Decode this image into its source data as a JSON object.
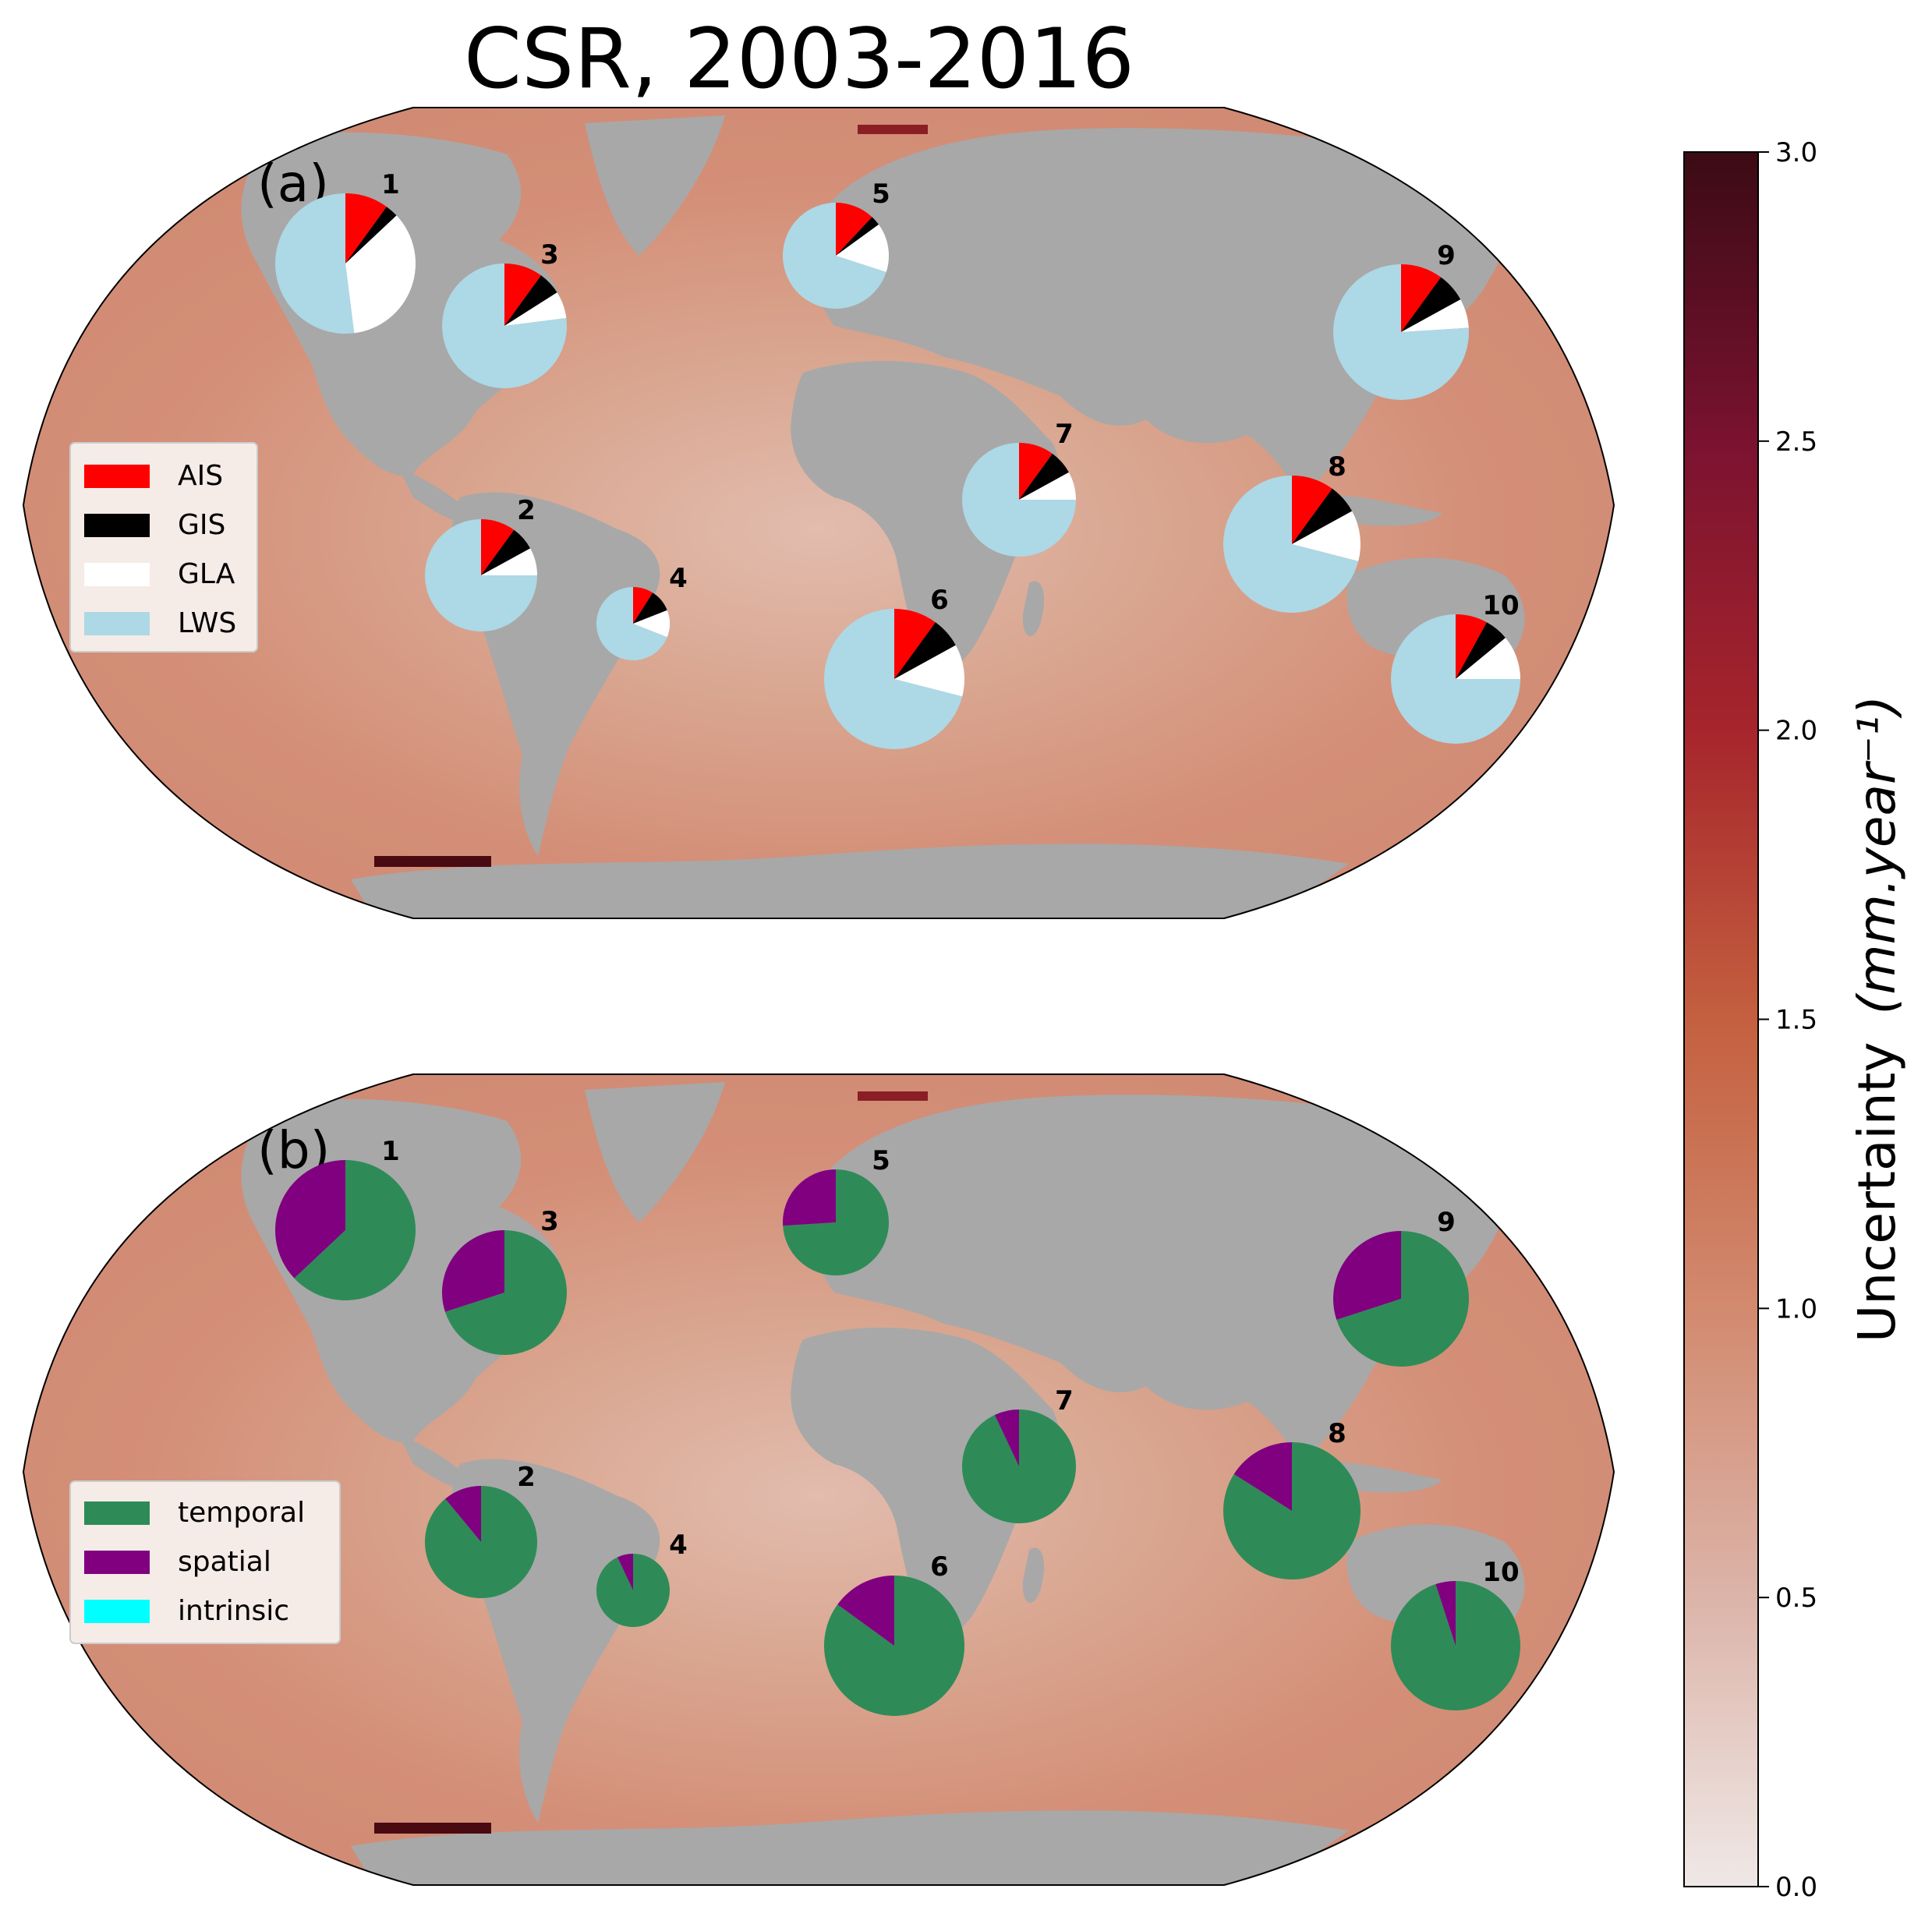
{
  "title": "CSR, 2003-2016",
  "colorbar": {
    "label": "Uncertainty",
    "unit": "(mm.year⁻¹)",
    "min": 0.0,
    "max": 3.0,
    "ticks": [
      "0.0",
      "0.5",
      "1.0",
      "1.5",
      "2.0",
      "2.5",
      "3.0"
    ],
    "colormap": "white-to-dark-red (amp)",
    "stops": [
      "#efe8e6",
      "#dcb4a9",
      "#d28a6f",
      "#c4603f",
      "#a7252c",
      "#7a1230",
      "#3b0b14"
    ]
  },
  "land_color": "#a8a8a8",
  "ocean_color": "#d48f78",
  "panel_a": {
    "label": "(a)",
    "legend": [
      {
        "label": "AIS",
        "color": "#ff0000"
      },
      {
        "label": "GIS",
        "color": "#000000"
      },
      {
        "label": "GLA",
        "color": "#ffffff"
      },
      {
        "label": "LWS",
        "color": "#add8e6"
      }
    ]
  },
  "panel_b": {
    "label": "(b)",
    "legend": [
      {
        "label": "temporal",
        "color": "#2e8b57"
      },
      {
        "label": "spatial",
        "color": "#800080"
      },
      {
        "label": "intrinsic",
        "color": "#00ffff"
      }
    ]
  },
  "regions": [
    {
      "id": "1",
      "a": [
        0.1,
        0.03,
        0.35,
        0.52
      ],
      "b": [
        0.63,
        0.37,
        0.0
      ]
    },
    {
      "id": "2",
      "a": [
        0.1,
        0.07,
        0.08,
        0.75
      ],
      "b": [
        0.89,
        0.11,
        0.0
      ]
    },
    {
      "id": "3",
      "a": [
        0.1,
        0.06,
        0.07,
        0.77
      ],
      "b": [
        0.7,
        0.3,
        0.0
      ]
    },
    {
      "id": "4",
      "a": [
        0.09,
        0.1,
        0.12,
        0.69
      ],
      "b": [
        0.93,
        0.07,
        0.0
      ]
    },
    {
      "id": "5",
      "a": [
        0.12,
        0.03,
        0.15,
        0.7
      ],
      "b": [
        0.74,
        0.26,
        0.0
      ]
    },
    {
      "id": "6",
      "a": [
        0.1,
        0.07,
        0.12,
        0.71
      ],
      "b": [
        0.85,
        0.15,
        0.0
      ]
    },
    {
      "id": "7",
      "a": [
        0.1,
        0.07,
        0.08,
        0.75
      ],
      "b": [
        0.93,
        0.07,
        0.0
      ]
    },
    {
      "id": "8",
      "a": [
        0.1,
        0.07,
        0.12,
        0.71
      ],
      "b": [
        0.84,
        0.16,
        0.0
      ]
    },
    {
      "id": "9",
      "a": [
        0.1,
        0.07,
        0.07,
        0.76
      ],
      "b": [
        0.7,
        0.3,
        0.0
      ]
    },
    {
      "id": "10",
      "a": [
        0.08,
        0.06,
        0.11,
        0.75
      ],
      "b": [
        0.95,
        0.05,
        0.0
      ]
    }
  ]
}
